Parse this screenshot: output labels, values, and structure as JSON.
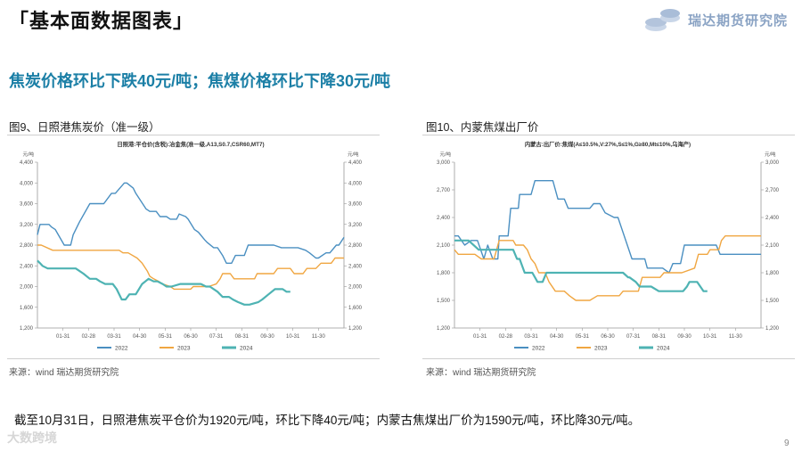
{
  "slide": {
    "title": "「基本面数据图表」",
    "brand": "瑞达期货研究院",
    "headline": "焦炭价格环比下跌40元/吨；焦煤价格环比下降30元/吨",
    "summary": "截至10月31日，日照港焦炭平仓价为1920元/吨，环比下降40元/吨；内蒙古焦煤出厂价为1590元/吨，环比降30元/吨。",
    "watermark": "大数跨境",
    "page_number": "9",
    "colors": {
      "s2022": "#4a8fc1",
      "s2023": "#f0a641",
      "s2024": "#4eb3b3",
      "accent": "#1b7fa6"
    }
  },
  "chart_data": [
    {
      "type": "line",
      "panel_title": "图9、日照港焦炭价（准一级）",
      "title": "日照港:平仓价(含税):冶金焦(准一级,A13,S0.7,CSR60,MT7)",
      "unit_left": "元/吨",
      "unit_right": "元/吨",
      "ylim": [
        1200,
        4400
      ],
      "yticks": [
        "1,200",
        "1,600",
        "2,000",
        "2,400",
        "2,800",
        "3,200",
        "3,600",
        "4,000",
        "4,400"
      ],
      "xlim": [
        0,
        12
      ],
      "xticks": [
        "01-31",
        "02-28",
        "03-31",
        "04-30",
        "05-31",
        "06-30",
        "07-31",
        "08-31",
        "09-30",
        "10-31",
        "11-30"
      ],
      "source": "来源：wind   瑞达期货研究院",
      "series": [
        {
          "name": "2022",
          "color": "#4a8fc1",
          "x": [
            0,
            0.1,
            0.25,
            0.45,
            0.55,
            0.7,
            1.05,
            1.3,
            1.4,
            1.65,
            2.05,
            2.4,
            2.6,
            2.9,
            3.05,
            3.4,
            3.5,
            3.75,
            3.85,
            4.25,
            4.4,
            4.65,
            4.8,
            5.05,
            5.2,
            5.45,
            5.55,
            5.8,
            5.9,
            6.15,
            6.3,
            6.55,
            6.65,
            6.9,
            7.05,
            7.25,
            7.4,
            7.6,
            7.75,
            8.1,
            8.25,
            8.6,
            8.75,
            9.1,
            9.25,
            9.55,
            9.7,
            10.1,
            10.2,
            10.5,
            10.65,
            10.9,
            11.0,
            11.3,
            11.45,
            11.7,
            11.8,
            12.0
          ],
          "y": [
            3000,
            3200,
            3200,
            3200,
            3150,
            3100,
            2800,
            2800,
            3000,
            3250,
            3600,
            3600,
            3600,
            3800,
            3800,
            4000,
            4000,
            3900,
            3800,
            3500,
            3450,
            3450,
            3350,
            3350,
            3300,
            3300,
            3400,
            3350,
            3300,
            3100,
            3050,
            2900,
            2850,
            2750,
            2750,
            2600,
            2450,
            2450,
            2600,
            2600,
            2800,
            2800,
            2800,
            2800,
            2800,
            2750,
            2750,
            2750,
            2750,
            2700,
            2650,
            2550,
            2550,
            2650,
            2650,
            2800,
            2800,
            2950
          ]
        },
        {
          "name": "2023",
          "color": "#f0a641",
          "x": [
            0,
            0.15,
            0.6,
            3.2,
            3.35,
            3.55,
            3.9,
            4.1,
            4.3,
            4.4,
            4.55,
            4.75,
            4.9,
            5.2,
            5.35,
            6.0,
            6.1,
            6.5,
            6.7,
            7.0,
            7.15,
            7.25,
            7.55,
            7.7,
            8.5,
            8.6,
            9.25,
            9.4,
            9.9,
            10.05,
            10.4,
            10.55,
            10.9,
            11.1,
            11.5,
            11.65,
            12.0
          ],
          "y": [
            2800,
            2800,
            2700,
            2700,
            2650,
            2650,
            2550,
            2450,
            2300,
            2200,
            2150,
            2100,
            2050,
            2000,
            1950,
            1950,
            2000,
            2000,
            2000,
            2050,
            2150,
            2250,
            2250,
            2150,
            2150,
            2250,
            2250,
            2350,
            2350,
            2250,
            2250,
            2350,
            2350,
            2450,
            2450,
            2550,
            2550
          ]
        },
        {
          "name": "2024",
          "color": "#4eb3b3",
          "x": [
            0,
            0.1,
            0.2,
            0.4,
            0.55,
            0.95,
            1.5,
            1.8,
            2.05,
            2.3,
            2.45,
            2.65,
            2.95,
            3.1,
            3.3,
            3.45,
            3.6,
            3.85,
            4.1,
            4.35,
            4.55,
            4.7,
            4.9,
            5.05,
            5.25,
            5.6,
            5.75,
            6.0,
            6.4,
            6.6,
            6.75,
            7.05,
            7.25,
            7.5,
            7.65,
            7.85,
            8.1,
            8.3,
            8.65,
            8.8,
            9.05,
            9.3,
            9.6,
            9.75,
            9.9
          ],
          "y": [
            2500,
            2450,
            2400,
            2350,
            2350,
            2350,
            2350,
            2250,
            2150,
            2150,
            2100,
            2050,
            2050,
            1950,
            1750,
            1750,
            1850,
            1850,
            2050,
            2150,
            2100,
            2100,
            2050,
            2000,
            2000,
            2050,
            2050,
            2050,
            2050,
            2000,
            2000,
            1900,
            1800,
            1800,
            1750,
            1700,
            1650,
            1650,
            1700,
            1750,
            1850,
            1950,
            1950,
            1900,
            1900
          ]
        }
      ]
    },
    {
      "type": "line",
      "panel_title": "图10、内蒙焦煤出厂价",
      "title": "内蒙古:出厂价:焦煤(A≤10.5%,V:27%,S≤1%,G≥80,Mt≤10%,乌海产)",
      "unit_left": "元/吨",
      "unit_right": "元/吨",
      "ylim": [
        1200,
        3000
      ],
      "yticks": [
        "1,200",
        "1,500",
        "1,800",
        "2,100",
        "2,400",
        "2,700",
        "3,000"
      ],
      "xlim": [
        0,
        12
      ],
      "xticks": [
        "01-31",
        "02-28",
        "03-31",
        "04-30",
        "05-31",
        "06-30",
        "07-31",
        "08-31",
        "09-30",
        "10-31",
        "11-30"
      ],
      "source": "来源：wind   瑞达期货研究院",
      "series": [
        {
          "name": "2022",
          "color": "#4a8fc1",
          "x": [
            0,
            0.15,
            0.4,
            0.65,
            0.9,
            1.15,
            1.3,
            1.5,
            1.7,
            1.75,
            2.1,
            2.2,
            2.5,
            2.55,
            2.65,
            3.0,
            3.15,
            3.85,
            4.05,
            4.3,
            4.45,
            4.65,
            4.85,
            5.3,
            5.45,
            5.7,
            5.9,
            6.25,
            6.4,
            6.95,
            7.1,
            7.45,
            7.55,
            7.95,
            8.15,
            8.4,
            8.55,
            8.85,
            9.0,
            9.4,
            9.55,
            10.25,
            10.4,
            10.6,
            10.7,
            11.2,
            11.3,
            12.0
          ],
          "y": [
            2200,
            2200,
            2100,
            2150,
            2150,
            1950,
            2100,
            1950,
            1950,
            2200,
            2200,
            2500,
            2500,
            2650,
            2650,
            2650,
            2800,
            2800,
            2600,
            2600,
            2500,
            2500,
            2500,
            2500,
            2550,
            2550,
            2450,
            2400,
            2400,
            1950,
            1950,
            1950,
            1850,
            1850,
            1850,
            1800,
            1900,
            1900,
            2100,
            2100,
            2100,
            2100,
            2000,
            2000,
            2000,
            2000,
            2000,
            2000
          ]
        },
        {
          "name": "2023",
          "color": "#f0a641",
          "x": [
            0,
            0.15,
            0.4,
            0.8,
            1.05,
            1.25,
            1.55,
            1.75,
            2.3,
            2.4,
            2.7,
            2.85,
            3.0,
            3.15,
            3.3,
            3.55,
            3.7,
            3.95,
            4.05,
            4.3,
            4.5,
            4.75,
            5.2,
            5.3,
            5.6,
            5.75,
            6.35,
            6.45,
            6.6,
            7.2,
            7.35,
            8.05,
            8.2,
            8.8,
            8.9,
            9.4,
            9.55,
            9.9,
            10.0,
            10.35,
            10.45,
            10.6,
            12.0
          ],
          "y": [
            2050,
            2000,
            2000,
            2000,
            1950,
            1950,
            1950,
            2150,
            2150,
            2100,
            2100,
            2050,
            1950,
            1900,
            1800,
            1800,
            1700,
            1600,
            1600,
            1600,
            1550,
            1500,
            1500,
            1500,
            1550,
            1550,
            1550,
            1550,
            1600,
            1600,
            1750,
            1750,
            1800,
            1800,
            1800,
            1850,
            2000,
            2000,
            2050,
            2050,
            2150,
            2200,
            2200
          ]
        },
        {
          "name": "2024",
          "color": "#4eb3b3",
          "x": [
            0,
            0.1,
            0.3,
            0.55,
            0.95,
            1.2,
            1.4,
            1.65,
            2.3,
            2.45,
            2.55,
            2.75,
            3.05,
            3.25,
            3.45,
            3.6,
            4.45,
            4.6,
            5.4,
            5.7,
            6.1,
            6.5,
            6.6,
            6.8,
            6.85,
            7.1,
            7.25,
            7.55,
            7.7,
            8.0,
            8.25,
            8.65,
            8.95,
            9.1,
            9.2,
            9.5,
            9.75,
            9.9
          ],
          "y": [
            2150,
            2150,
            2150,
            2150,
            2050,
            2050,
            2050,
            2050,
            2050,
            1950,
            1950,
            1800,
            1800,
            1700,
            1700,
            1800,
            1800,
            1800,
            1800,
            1800,
            1800,
            1800,
            1800,
            1750,
            1750,
            1700,
            1650,
            1650,
            1650,
            1600,
            1600,
            1600,
            1600,
            1650,
            1700,
            1700,
            1600,
            1600
          ]
        }
      ]
    }
  ]
}
